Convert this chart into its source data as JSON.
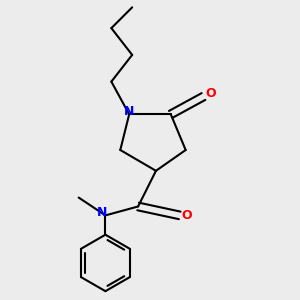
{
  "bg_color": "#ececec",
  "bond_color": "#000000",
  "N_color": "#0000ff",
  "O_color": "#ff0000",
  "font_size": 9,
  "bond_width": 1.5,
  "fig_w": 3.0,
  "fig_h": 3.0,
  "dpi": 100,
  "xlim": [
    0,
    1
  ],
  "ylim": [
    0,
    1
  ]
}
